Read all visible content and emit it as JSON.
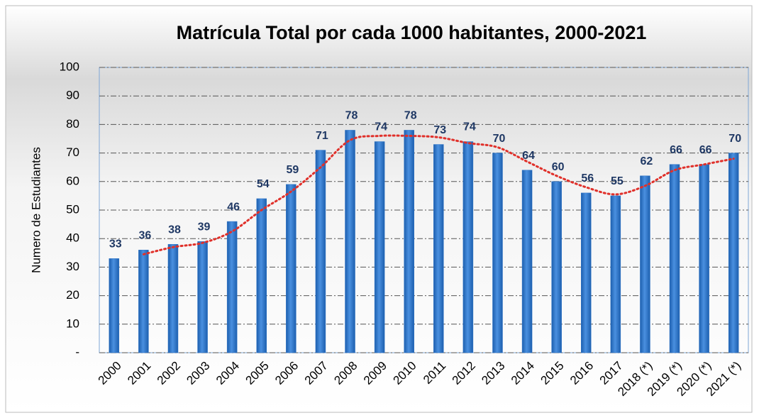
{
  "chart_data": {
    "type": "bar",
    "title": "Matrícula Total por cada 1000 habitantes, 2000-2021",
    "y_label": "Numero de Estudiantes",
    "categories": [
      "2000",
      "2001",
      "2002",
      "2003",
      "2004",
      "2005",
      "2006",
      "2007",
      "2008",
      "2009",
      "2010",
      "2011",
      "2012",
      "2013",
      "2014",
      "2015",
      "2016",
      "2017",
      "2018 (*)",
      "2019 (*)",
      "2020 (*)",
      "2021 (*)"
    ],
    "values": [
      33,
      36,
      38,
      39,
      46,
      54,
      59,
      71,
      78,
      74,
      78,
      73,
      74,
      70,
      64,
      60,
      56,
      55,
      62,
      66,
      66,
      70
    ],
    "color": "#2e75c8",
    "ylim": [
      0,
      100
    ],
    "yticks": [
      {
        "value": 0,
        "label": "-"
      },
      10,
      20,
      30,
      40,
      50,
      60,
      70,
      80,
      90,
      100
    ],
    "grid": true,
    "trendline": {
      "type": "moving-average",
      "period": 2,
      "color": "#e0302a"
    }
  }
}
